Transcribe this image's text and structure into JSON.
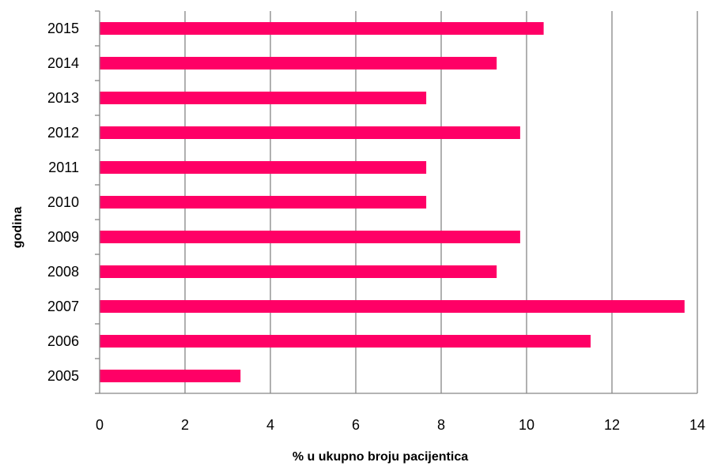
{
  "chart_data": {
    "type": "bar",
    "orientation": "horizontal",
    "categories": [
      "2005",
      "2006",
      "2007",
      "2008",
      "2009",
      "2010",
      "2011",
      "2012",
      "2013",
      "2014",
      "2015"
    ],
    "values": [
      3.3,
      11.5,
      13.7,
      9.3,
      9.85,
      7.65,
      7.65,
      9.85,
      7.65,
      9.3,
      10.4
    ],
    "xlabel": "% u ukupno broju pacijentica",
    "ylabel": "godina",
    "xlim": [
      0,
      14
    ],
    "xticks": [
      "0",
      "2",
      "4",
      "6",
      "8",
      "10",
      "12",
      "14"
    ],
    "grid": "vertical",
    "legend": "none",
    "bar_color": "#ff0066",
    "grid_color": "#868686"
  }
}
